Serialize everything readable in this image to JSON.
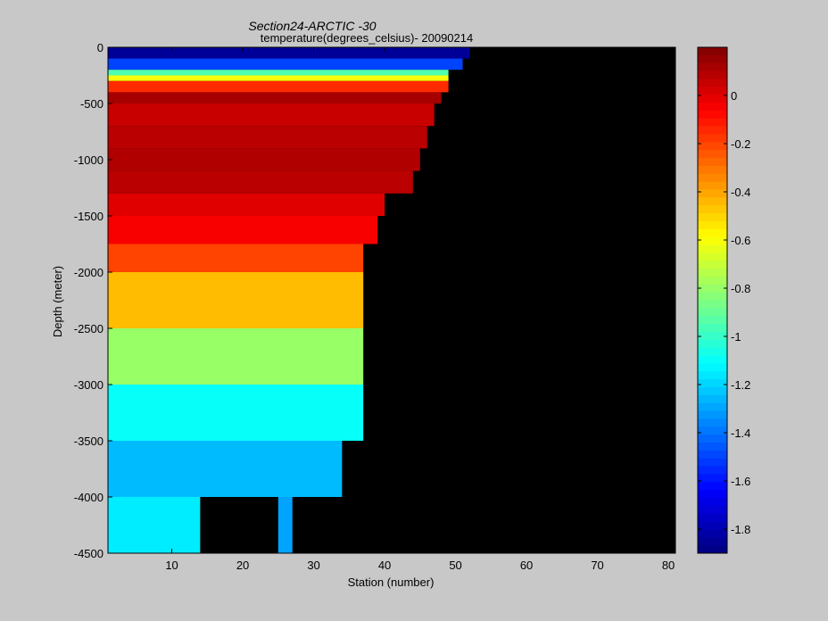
{
  "chart_data": {
    "type": "heatmap",
    "title": "Section24-ARCTIC  -30",
    "subtitle": "temperature(degrees_celsius)- 20090214",
    "xlabel": "Station (number)",
    "ylabel": "Depth (meter)",
    "xlim": [
      1,
      81
    ],
    "ylim": [
      -4500,
      0
    ],
    "xticks": [
      10,
      20,
      30,
      40,
      50,
      60,
      70,
      80
    ],
    "yticks": [
      0,
      -500,
      -1000,
      -1500,
      -2000,
      -2500,
      -3000,
      -3500,
      -4000,
      -4500
    ],
    "colorbar": {
      "range": [
        -1.9,
        0.2
      ],
      "ticks": [
        0,
        -0.2,
        -0.4,
        -0.6,
        -0.8,
        -1,
        -1.2,
        -1.4,
        -1.6,
        -1.8
      ],
      "tick_labels": [
        "0",
        "-0.2",
        "-0.4",
        "-0.6",
        "-0.8",
        "-1",
        "-1.2",
        "-1.4",
        "-1.6",
        "-1.8"
      ],
      "colormap": "jet"
    },
    "no_data_color": "#000000",
    "background_color": "#c8c8c8",
    "layers": [
      {
        "depth_top": 0,
        "depth_bottom": -100,
        "value": -1.85,
        "station_end": 52
      },
      {
        "depth_top": -100,
        "depth_bottom": -200,
        "value": -1.5,
        "station_end": 51
      },
      {
        "depth_top": -200,
        "depth_bottom": -250,
        "value": -0.95,
        "station_end": 49
      },
      {
        "depth_top": -250,
        "depth_bottom": -300,
        "value": -0.6,
        "station_end": 49
      },
      {
        "depth_top": -300,
        "depth_bottom": -400,
        "value": -0.15,
        "station_end": 49
      },
      {
        "depth_top": -400,
        "depth_bottom": -500,
        "value": 0.12,
        "station_end": 48
      },
      {
        "depth_top": -500,
        "depth_bottom": -700,
        "value": 0.05,
        "station_end": 47
      },
      {
        "depth_top": -700,
        "depth_bottom": -900,
        "value": 0.08,
        "station_end": 46
      },
      {
        "depth_top": -900,
        "depth_bottom": -1100,
        "value": 0.1,
        "station_end": 45
      },
      {
        "depth_top": -1100,
        "depth_bottom": -1300,
        "value": 0.08,
        "station_end": 44
      },
      {
        "depth_top": -1300,
        "depth_bottom": -1500,
        "value": 0.0,
        "station_end": 40
      },
      {
        "depth_top": -1500,
        "depth_bottom": -1750,
        "value": -0.05,
        "station_end": 39
      },
      {
        "depth_top": -1750,
        "depth_bottom": -2000,
        "value": -0.2,
        "station_end": 37
      },
      {
        "depth_top": -2000,
        "depth_bottom": -2500,
        "value": -0.45,
        "station_end": 37
      },
      {
        "depth_top": -2500,
        "depth_bottom": -3000,
        "value": -0.8,
        "station_end": 37
      },
      {
        "depth_top": -3000,
        "depth_bottom": -3500,
        "value": -1.1,
        "station_end": 37
      },
      {
        "depth_top": -3500,
        "depth_bottom": -4000,
        "value": -1.25,
        "station_end": 34
      },
      {
        "depth_top": -4000,
        "depth_bottom": -4500,
        "value": -1.15,
        "station_end": 14
      }
    ],
    "deep_patch": {
      "depth_top": -4000,
      "depth_bottom": -4500,
      "station_start": 25,
      "station_end": 27,
      "value": -1.3
    }
  }
}
